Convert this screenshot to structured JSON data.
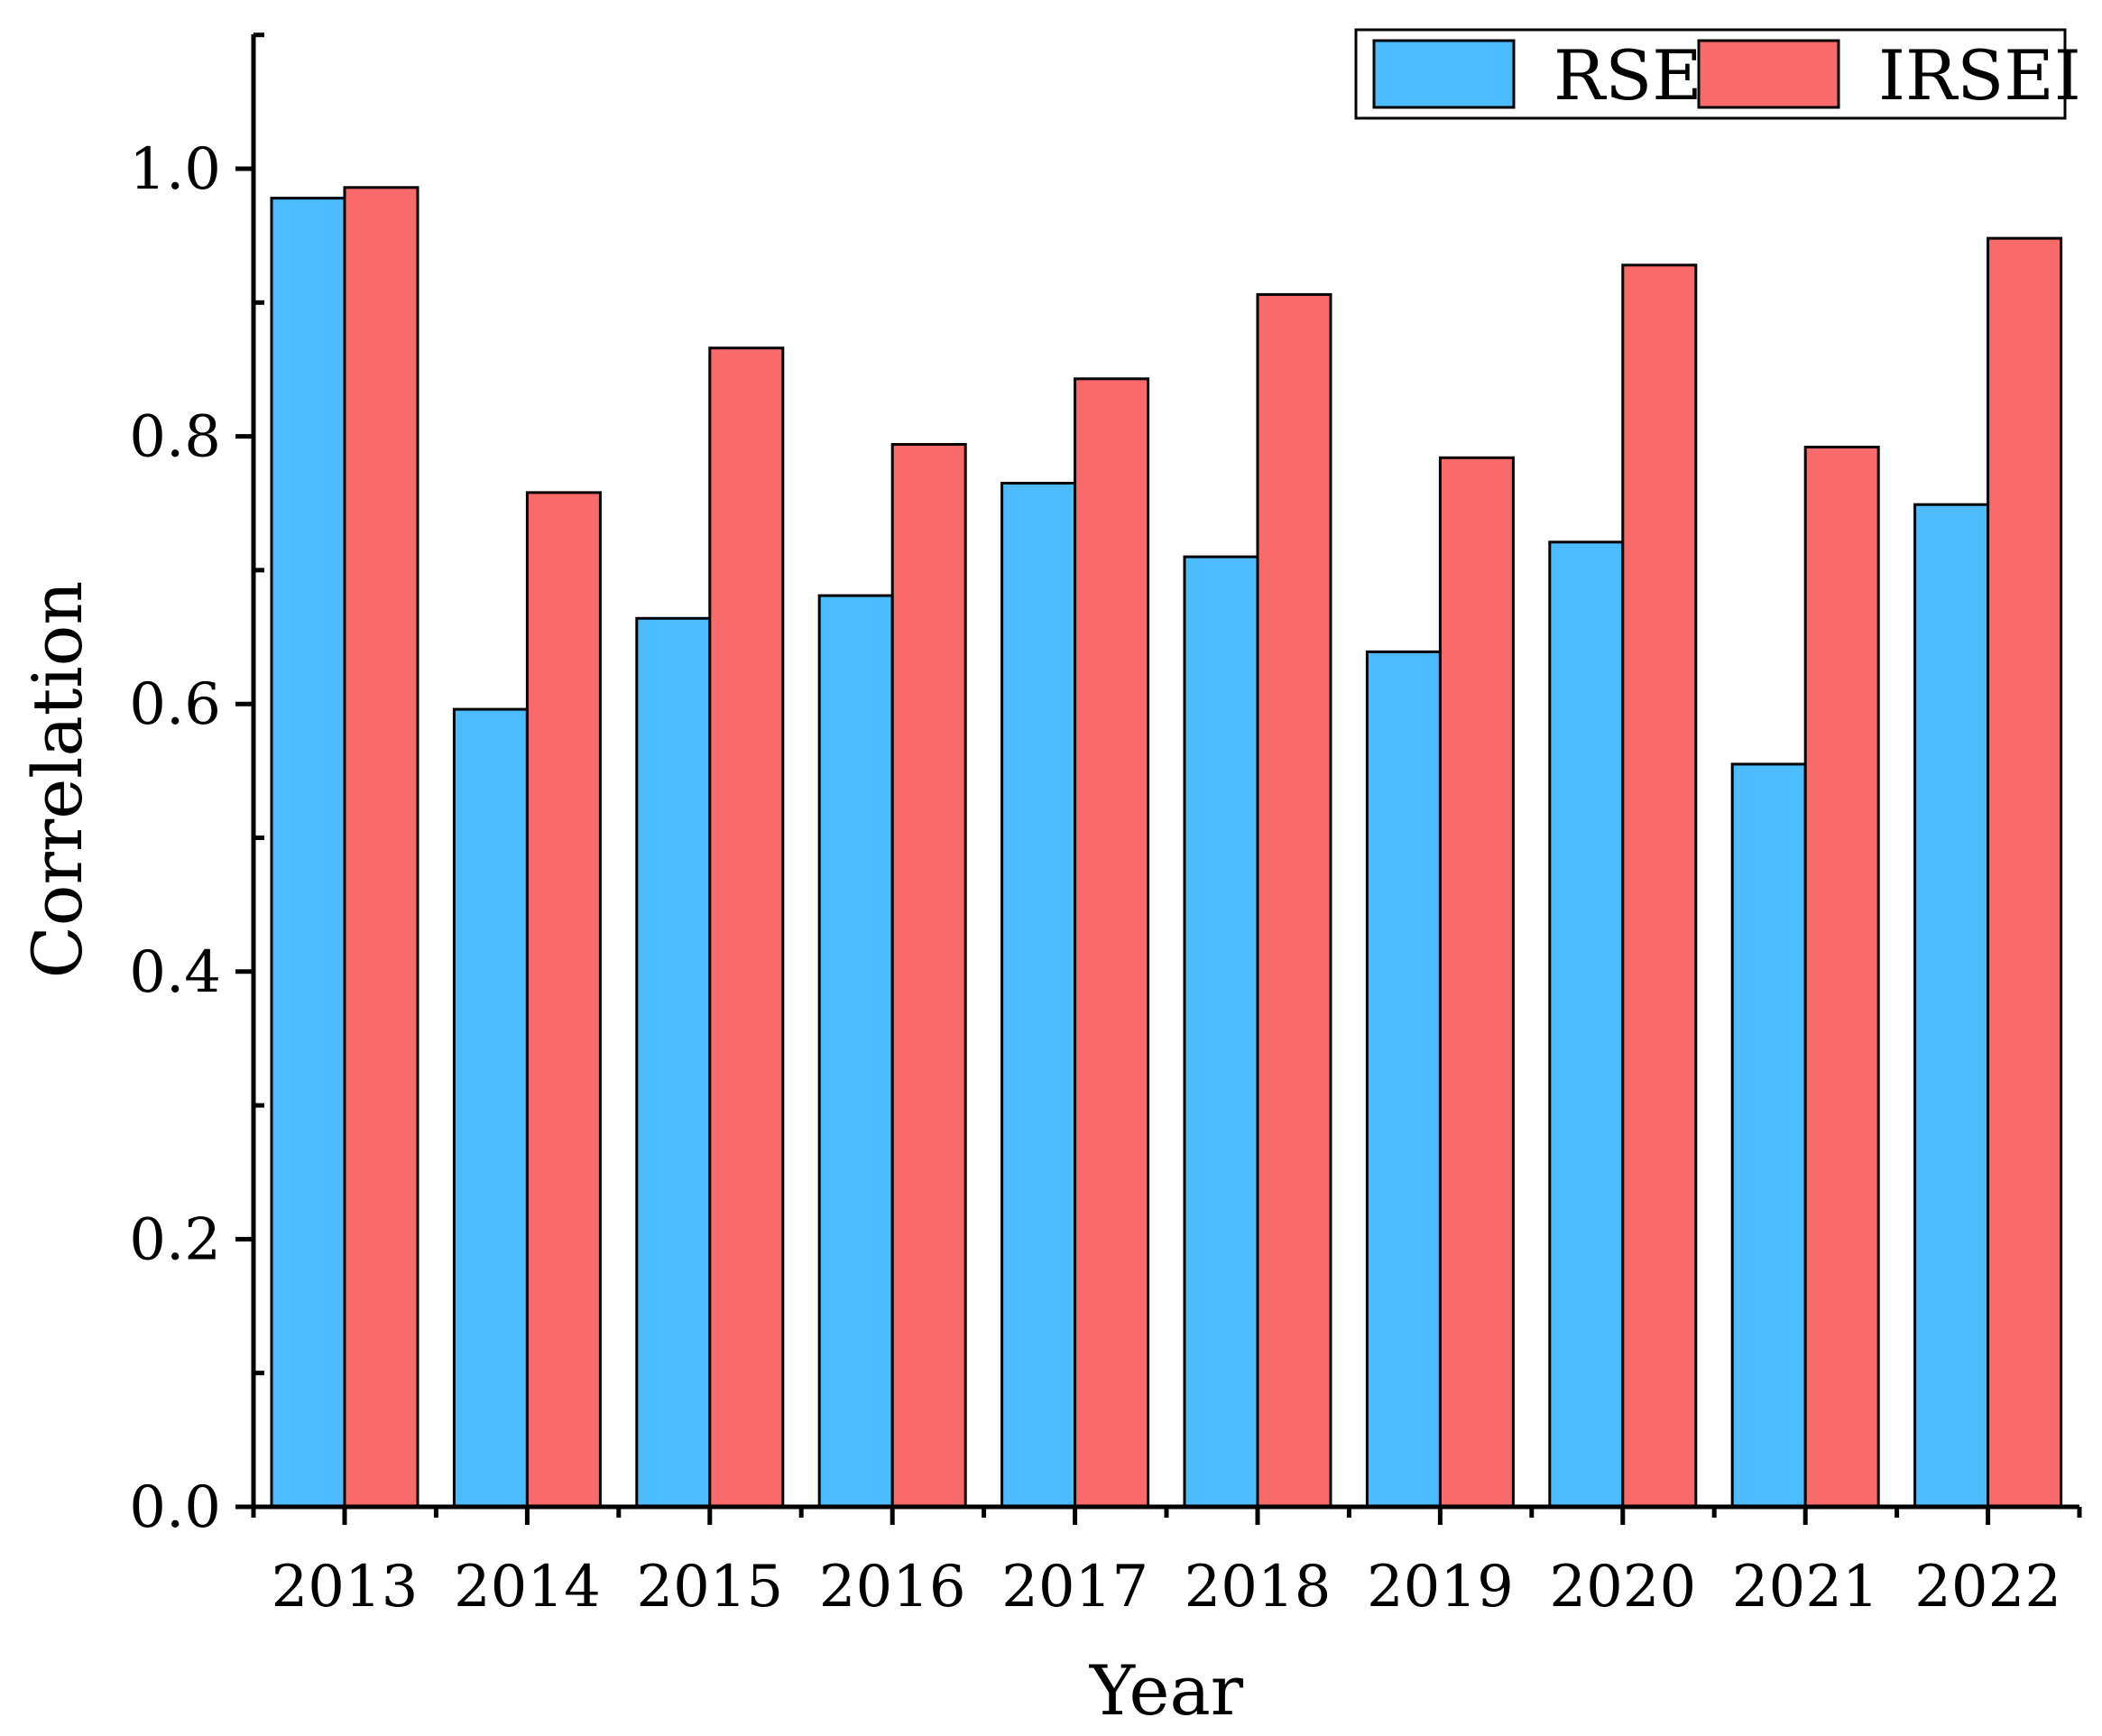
{
  "chart_data": {
    "type": "bar",
    "title": "",
    "xlabel": "Year",
    "ylabel": "Correlation",
    "ylim": [
      0,
      1.1
    ],
    "yticks": [
      "0.0",
      "0.2",
      "0.4",
      "0.6",
      "0.8",
      "1.0"
    ],
    "categories": [
      "2013",
      "2014",
      "2015",
      "2016",
      "2017",
      "2018",
      "2019",
      "2020",
      "2021",
      "2022"
    ],
    "series": [
      {
        "name": "RSEI",
        "color": "#4DBBFF",
        "values": [
          0.978,
          0.596,
          0.664,
          0.681,
          0.765,
          0.71,
          0.639,
          0.721,
          0.555,
          0.749
        ]
      },
      {
        "name": "IRSEI",
        "color": "#F96B6B",
        "values": [
          0.986,
          0.758,
          0.866,
          0.794,
          0.843,
          0.906,
          0.784,
          0.928,
          0.792,
          0.948
        ]
      }
    ],
    "legend_position": "top-right",
    "grid": false
  }
}
